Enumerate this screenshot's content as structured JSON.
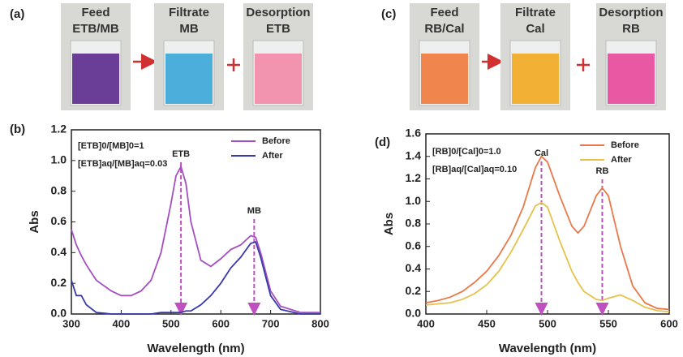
{
  "panel_labels": [
    "(a)",
    "(b)",
    "(c)",
    "(d)"
  ],
  "photos": [
    {
      "panel": "(a)",
      "beakers": [
        {
          "lines": [
            "Feed",
            "ETB/MB"
          ],
          "color": "#5b2a8c"
        },
        {
          "lines": [
            "Filtrate",
            "MB"
          ],
          "color": "#3aa6d8"
        },
        {
          "lines": [
            "Desorption",
            "ETB"
          ],
          "color": "#f28aa8"
        }
      ]
    },
    {
      "panel": "(c)",
      "beakers": [
        {
          "lines": [
            "Feed",
            "RB/Cal"
          ],
          "color": "#f07a3c"
        },
        {
          "lines": [
            "Filtrate",
            "Cal"
          ],
          "color": "#f2a820"
        },
        {
          "lines": [
            "Desorption",
            "RB"
          ],
          "color": "#e8489a"
        }
      ]
    }
  ],
  "chart_data": [
    {
      "type": "line",
      "xlabel": "Wavelength (nm)",
      "ylabel": "Abs",
      "x": [
        300,
        310,
        320,
        330,
        350,
        380,
        400,
        420,
        440,
        460,
        480,
        500,
        510,
        520,
        530,
        540,
        560,
        580,
        600,
        620,
        640,
        660,
        670,
        680,
        700,
        720,
        760,
        800
      ],
      "series": [
        {
          "name": "Before",
          "color": "#a44fc0",
          "values": [
            0.55,
            0.45,
            0.38,
            0.32,
            0.22,
            0.15,
            0.12,
            0.12,
            0.15,
            0.22,
            0.4,
            0.72,
            0.9,
            0.96,
            0.85,
            0.6,
            0.35,
            0.31,
            0.36,
            0.42,
            0.45,
            0.51,
            0.5,
            0.4,
            0.15,
            0.05,
            0.01,
            0.01
          ]
        },
        {
          "name": "After",
          "color": "#3a3aa8",
          "values": [
            0.22,
            0.12,
            0.12,
            0.06,
            0.01,
            0,
            0,
            0,
            0,
            0,
            0.01,
            0.01,
            0.01,
            0.01,
            0.02,
            0.02,
            0.06,
            0.12,
            0.2,
            0.3,
            0.37,
            0.46,
            0.47,
            0.37,
            0.12,
            0.03,
            0,
            0
          ]
        }
      ],
      "xlim": [
        300,
        800
      ],
      "xticks": [
        300,
        400,
        500,
        600,
        700,
        800
      ],
      "ylim": [
        0,
        1.2
      ],
      "yticks": [
        {
          "value": 0,
          "label": "0.0"
        },
        {
          "value": 0.2,
          "label": "0.2"
        },
        {
          "value": 0.4,
          "label": "0.4"
        },
        {
          "value": 0.6,
          "label": "0.6"
        },
        {
          "value": 0.8,
          "label": "0.8"
        },
        {
          "value": 1,
          "label": "1.0"
        },
        {
          "value": 1.2,
          "label": "1.2"
        }
      ],
      "legend": "upper right",
      "notes": [
        "[ETB]0/[MB]0=1",
        "[ETB]aq/[MB]aq=0.03"
      ],
      "annotations": [
        {
          "text": "ETB",
          "x": 520
        },
        {
          "text": "MB",
          "x": 667
        }
      ]
    },
    {
      "type": "line",
      "xlabel": "Wavelength (nm)",
      "ylabel": "Abs",
      "x": [
        400,
        410,
        420,
        430,
        440,
        450,
        460,
        470,
        480,
        490,
        495,
        500,
        510,
        520,
        525,
        530,
        540,
        545,
        550,
        560,
        570,
        580,
        590,
        600
      ],
      "series": [
        {
          "name": "Before",
          "color": "#e8794a",
          "values": [
            0.1,
            0.12,
            0.15,
            0.2,
            0.28,
            0.38,
            0.52,
            0.7,
            0.95,
            1.3,
            1.4,
            1.35,
            1.05,
            0.78,
            0.72,
            0.78,
            1.05,
            1.12,
            1.05,
            0.6,
            0.25,
            0.1,
            0.05,
            0.04
          ]
        },
        {
          "name": "After",
          "color": "#e6c24a",
          "values": [
            0.08,
            0.09,
            0.1,
            0.13,
            0.18,
            0.26,
            0.38,
            0.55,
            0.75,
            0.96,
            0.99,
            0.95,
            0.65,
            0.38,
            0.28,
            0.2,
            0.13,
            0.12,
            0.14,
            0.17,
            0.12,
            0.06,
            0.03,
            0.02
          ]
        }
      ],
      "xlim": [
        400,
        600
      ],
      "xticks": [
        400,
        450,
        500,
        550,
        600
      ],
      "ylim": [
        0,
        1.6
      ],
      "yticks": [
        {
          "value": 0,
          "label": "0.0"
        },
        {
          "value": 0.2,
          "label": "0.2"
        },
        {
          "value": 0.4,
          "label": "0.4"
        },
        {
          "value": 0.6,
          "label": "0.6"
        },
        {
          "value": 0.8,
          "label": "0.8"
        },
        {
          "value": 1,
          "label": "1.0"
        },
        {
          "value": 1.2,
          "label": "1.2"
        },
        {
          "value": 1.4,
          "label": "1.4"
        },
        {
          "value": 1.6,
          "label": "1.6"
        }
      ],
      "legend": "upper right",
      "notes": [
        "[RB]0/[Cal]0=1.0",
        "[RB]aq/[Cal]aq=0.10"
      ],
      "annotations": [
        {
          "text": "Cal",
          "x": 495
        },
        {
          "text": "RB",
          "x": 545
        }
      ]
    }
  ]
}
